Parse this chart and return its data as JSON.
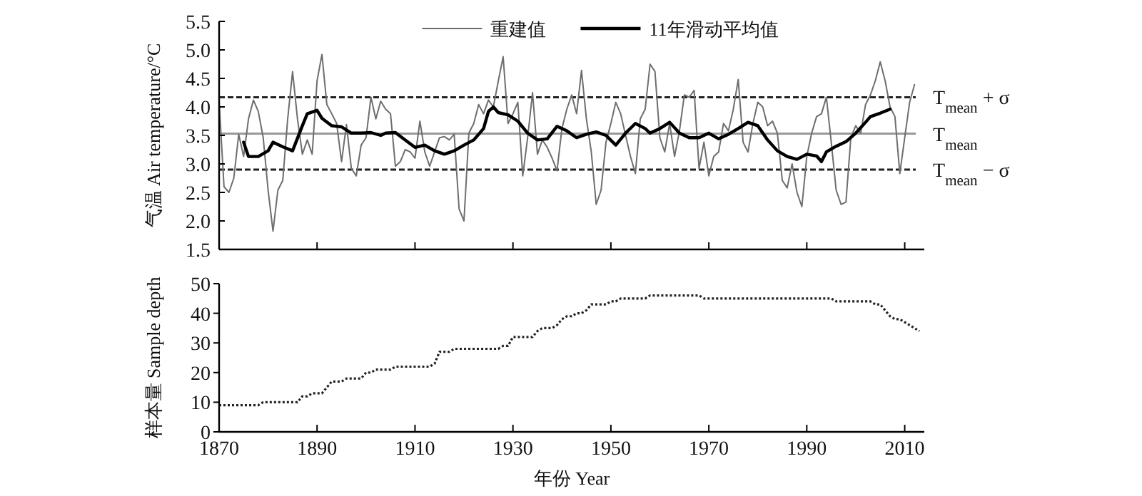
{
  "chart_data": [
    {
      "type": "line",
      "ylabel": "气温 Air temperature/°C",
      "xlim": [
        1870,
        2014
      ],
      "xticks": [
        1870,
        1890,
        1910,
        1930,
        1950,
        1970,
        1990,
        2010
      ],
      "ylim": [
        1.5,
        5.5
      ],
      "yticks": [
        1.5,
        {
          "value": 2,
          "label": "2.0"
        },
        2.5,
        {
          "value": 3,
          "label": "3.0"
        },
        3.5,
        {
          "value": 4,
          "label": "4.0"
        },
        4.5,
        {
          "value": 5,
          "label": "5.0"
        },
        5.5
      ],
      "tick_labels": "y",
      "legend": "top",
      "grid": false,
      "ref_lines": [
        {
          "axis": "y",
          "value": 4.17,
          "label": "T$_{mean}$ + σ",
          "color": "#222222",
          "line_style": "dashed"
        },
        {
          "axis": "y",
          "value": 3.53,
          "label": "T$_{mean}$",
          "color": "#999999",
          "line_style": "solid"
        },
        {
          "axis": "y",
          "value": 2.9,
          "label": "T$_{mean}$ − σ",
          "color": "#222222",
          "line_style": "dashed"
        }
      ],
      "series": [
        {
          "name": "重建值",
          "color": "#6e6e6e",
          "x": [
            1870,
            1871,
            1872,
            1873,
            1874,
            1875,
            1876,
            1877,
            1878,
            1879,
            1880,
            1881,
            1882,
            1883,
            1884,
            1885,
            1886,
            1887,
            1888,
            1889,
            1890,
            1891,
            1892,
            1893,
            1894,
            1895,
            1896,
            1897,
            1898,
            1899,
            1900,
            1901,
            1902,
            1903,
            1904,
            1905,
            1906,
            1907,
            1908,
            1909,
            1910,
            1911,
            1912,
            1913,
            1914,
            1915,
            1916,
            1917,
            1918,
            1919,
            1920,
            1921,
            1922,
            1923,
            1924,
            1925,
            1926,
            1927,
            1928,
            1929,
            1930,
            1931,
            1932,
            1933,
            1934,
            1935,
            1936,
            1937,
            1938,
            1939,
            1940,
            1941,
            1942,
            1943,
            1944,
            1945,
            1946,
            1947,
            1948,
            1949,
            1950,
            1951,
            1952,
            1953,
            1954,
            1955,
            1956,
            1957,
            1958,
            1959,
            1960,
            1961,
            1962,
            1963,
            1964,
            1965,
            1966,
            1967,
            1968,
            1969,
            1970,
            1971,
            1972,
            1973,
            1974,
            1975,
            1976,
            1977,
            1978,
            1979,
            1980,
            1981,
            1982,
            1983,
            1984,
            1985,
            1986,
            1987,
            1988,
            1989,
            1990,
            1991,
            1992,
            1993,
            1994,
            1995,
            1996,
            1997,
            1998,
            1999,
            2000,
            2001,
            2002,
            2003,
            2004,
            2005,
            2006,
            2007,
            2008,
            2009,
            2010,
            2011,
            2012
          ],
          "values": [
            4.1,
            2.6,
            2.5,
            2.75,
            3.52,
            3.13,
            3.79,
            4.12,
            3.92,
            3.46,
            2.54,
            1.82,
            2.54,
            2.71,
            3.79,
            4.62,
            3.79,
            3.17,
            3.42,
            3.17,
            4.46,
            4.92,
            4.04,
            3.88,
            3.71,
            3.04,
            3.69,
            2.92,
            2.79,
            3.33,
            3.46,
            4.17,
            3.79,
            4.1,
            3.96,
            3.88,
            2.96,
            3.04,
            3.25,
            3.21,
            3.1,
            3.75,
            3.21,
            2.96,
            3.21,
            3.46,
            3.48,
            3.42,
            3.52,
            2.21,
            2.0,
            3.54,
            3.71,
            4.04,
            3.88,
            4.12,
            4.0,
            4.45,
            4.88,
            3.71,
            3.88,
            4.08,
            2.79,
            3.46,
            4.25,
            3.17,
            3.42,
            3.29,
            3.1,
            2.88,
            3.62,
            3.96,
            4.21,
            3.88,
            4.64,
            3.79,
            3.21,
            2.29,
            2.54,
            3.38,
            3.71,
            4.08,
            3.88,
            3.5,
            3.13,
            2.83,
            3.79,
            3.96,
            4.75,
            4.62,
            3.46,
            3.21,
            3.71,
            3.13,
            3.58,
            4.21,
            4.17,
            4.29,
            2.92,
            3.38,
            2.79,
            3.13,
            3.21,
            3.71,
            3.58,
            3.96,
            4.48,
            3.38,
            3.21,
            3.71,
            4.08,
            4.0,
            3.67,
            3.75,
            3.54,
            2.71,
            2.58,
            3.0,
            2.5,
            2.25,
            3.13,
            3.54,
            3.83,
            3.88,
            4.17,
            3.38,
            2.54,
            2.29,
            2.33,
            3.46,
            3.67,
            3.54,
            4.04,
            4.21,
            4.46,
            4.79,
            4.46,
            4.0,
            3.83,
            2.83,
            3.46,
            4.08,
            4.39
          ]
        },
        {
          "name": "11年滑动平均值",
          "color": "#000000",
          "x": [
            1875,
            1876,
            1878,
            1880,
            1881,
            1883,
            1885,
            1887,
            1888,
            1890,
            1891,
            1893,
            1895,
            1897,
            1899,
            1901,
            1903,
            1904,
            1906,
            1908,
            1910,
            1912,
            1914,
            1916,
            1918,
            1920,
            1922,
            1924,
            1925,
            1926,
            1927,
            1929,
            1931,
            1933,
            1935,
            1937,
            1939,
            1941,
            1943,
            1945,
            1947,
            1949,
            1951,
            1953,
            1955,
            1957,
            1958,
            1960,
            1962,
            1964,
            1966,
            1968,
            1970,
            1972,
            1974,
            1976,
            1978,
            1980,
            1982,
            1984,
            1986,
            1988,
            1990,
            1992,
            1993,
            1994,
            1996,
            1998,
            2000,
            2002,
            2003,
            2005,
            2007
          ],
          "values": [
            3.38,
            3.13,
            3.13,
            3.23,
            3.38,
            3.3,
            3.23,
            3.67,
            3.88,
            3.94,
            3.8,
            3.67,
            3.65,
            3.54,
            3.54,
            3.55,
            3.5,
            3.54,
            3.55,
            3.42,
            3.29,
            3.33,
            3.23,
            3.17,
            3.23,
            3.33,
            3.42,
            3.62,
            3.92,
            4.0,
            3.9,
            3.86,
            3.75,
            3.54,
            3.42,
            3.44,
            3.66,
            3.58,
            3.46,
            3.52,
            3.56,
            3.5,
            3.33,
            3.54,
            3.71,
            3.62,
            3.54,
            3.62,
            3.73,
            3.54,
            3.46,
            3.46,
            3.54,
            3.44,
            3.52,
            3.62,
            3.73,
            3.67,
            3.42,
            3.23,
            3.13,
            3.08,
            3.17,
            3.14,
            3.04,
            3.21,
            3.31,
            3.39,
            3.54,
            3.73,
            3.83,
            3.89,
            3.96
          ]
        }
      ]
    },
    {
      "type": "line",
      "ylabel": "样本量 Sample depth",
      "xlabel": "年份 Year",
      "xlim": [
        1870,
        2014
      ],
      "xticks": [
        1870,
        1890,
        1910,
        1930,
        1950,
        1970,
        1990,
        2010
      ],
      "ylim": [
        0,
        50
      ],
      "yticks": [
        0,
        10,
        20,
        30,
        40,
        50
      ],
      "grid": false,
      "line_style": "dotted",
      "x": [
        1870,
        1871,
        1872,
        1873,
        1874,
        1875,
        1876,
        1877,
        1878,
        1879,
        1880,
        1881,
        1882,
        1883,
        1884,
        1885,
        1886,
        1887,
        1888,
        1889,
        1890,
        1891,
        1892,
        1893,
        1894,
        1895,
        1896,
        1897,
        1898,
        1899,
        1900,
        1901,
        1902,
        1903,
        1904,
        1905,
        1906,
        1907,
        1908,
        1909,
        1910,
        1911,
        1912,
        1913,
        1914,
        1915,
        1916,
        1917,
        1918,
        1919,
        1920,
        1921,
        1922,
        1923,
        1924,
        1925,
        1926,
        1927,
        1928,
        1929,
        1930,
        1931,
        1932,
        1933,
        1934,
        1935,
        1936,
        1937,
        1938,
        1939,
        1940,
        1941,
        1942,
        1943,
        1944,
        1945,
        1946,
        1947,
        1948,
        1949,
        1950,
        1951,
        1952,
        1953,
        1954,
        1955,
        1956,
        1957,
        1958,
        1959,
        1960,
        1961,
        1962,
        1963,
        1964,
        1965,
        1966,
        1967,
        1968,
        1969,
        1970,
        1971,
        1972,
        1973,
        1974,
        1975,
        1976,
        1977,
        1978,
        1979,
        1980,
        1981,
        1982,
        1983,
        1984,
        1985,
        1986,
        1987,
        1988,
        1989,
        1990,
        1991,
        1992,
        1993,
        1994,
        1995,
        1996,
        1997,
        1998,
        1999,
        2000,
        2001,
        2002,
        2003,
        2004,
        2005,
        2006,
        2007,
        2008,
        2009,
        2010,
        2011,
        2012,
        2013
      ],
      "series": [
        {
          "color": "#222222",
          "values": [
            9,
            9,
            9,
            9,
            9,
            9,
            9,
            9,
            9,
            10,
            10,
            10,
            10,
            10,
            10,
            10,
            10,
            12,
            12,
            13,
            13,
            13,
            15,
            17,
            17,
            17,
            18,
            18,
            18,
            18,
            20,
            20,
            21,
            21,
            21,
            21,
            22,
            22,
            22,
            22,
            22,
            22,
            22,
            22,
            23,
            27,
            27,
            27,
            28,
            28,
            28,
            28,
            28,
            28,
            28,
            28,
            28,
            28,
            29,
            29,
            32,
            32,
            32,
            32,
            32,
            34,
            35,
            35,
            35,
            36,
            38,
            39,
            39,
            40,
            40,
            41,
            43,
            43,
            43,
            43,
            44,
            44,
            45,
            45,
            45,
            45,
            45,
            45,
            46,
            46,
            46,
            46,
            46,
            46,
            46,
            46,
            46,
            46,
            46,
            45,
            45,
            45,
            45,
            45,
            45,
            45,
            45,
            45,
            45,
            45,
            45,
            45,
            45,
            45,
            45,
            45,
            45,
            45,
            45,
            45,
            45,
            45,
            45,
            45,
            45,
            45,
            44,
            44,
            44,
            44,
            44,
            44,
            44,
            44,
            43,
            43,
            41,
            39,
            38,
            38,
            37,
            36,
            35,
            34
          ]
        }
      ]
    }
  ]
}
